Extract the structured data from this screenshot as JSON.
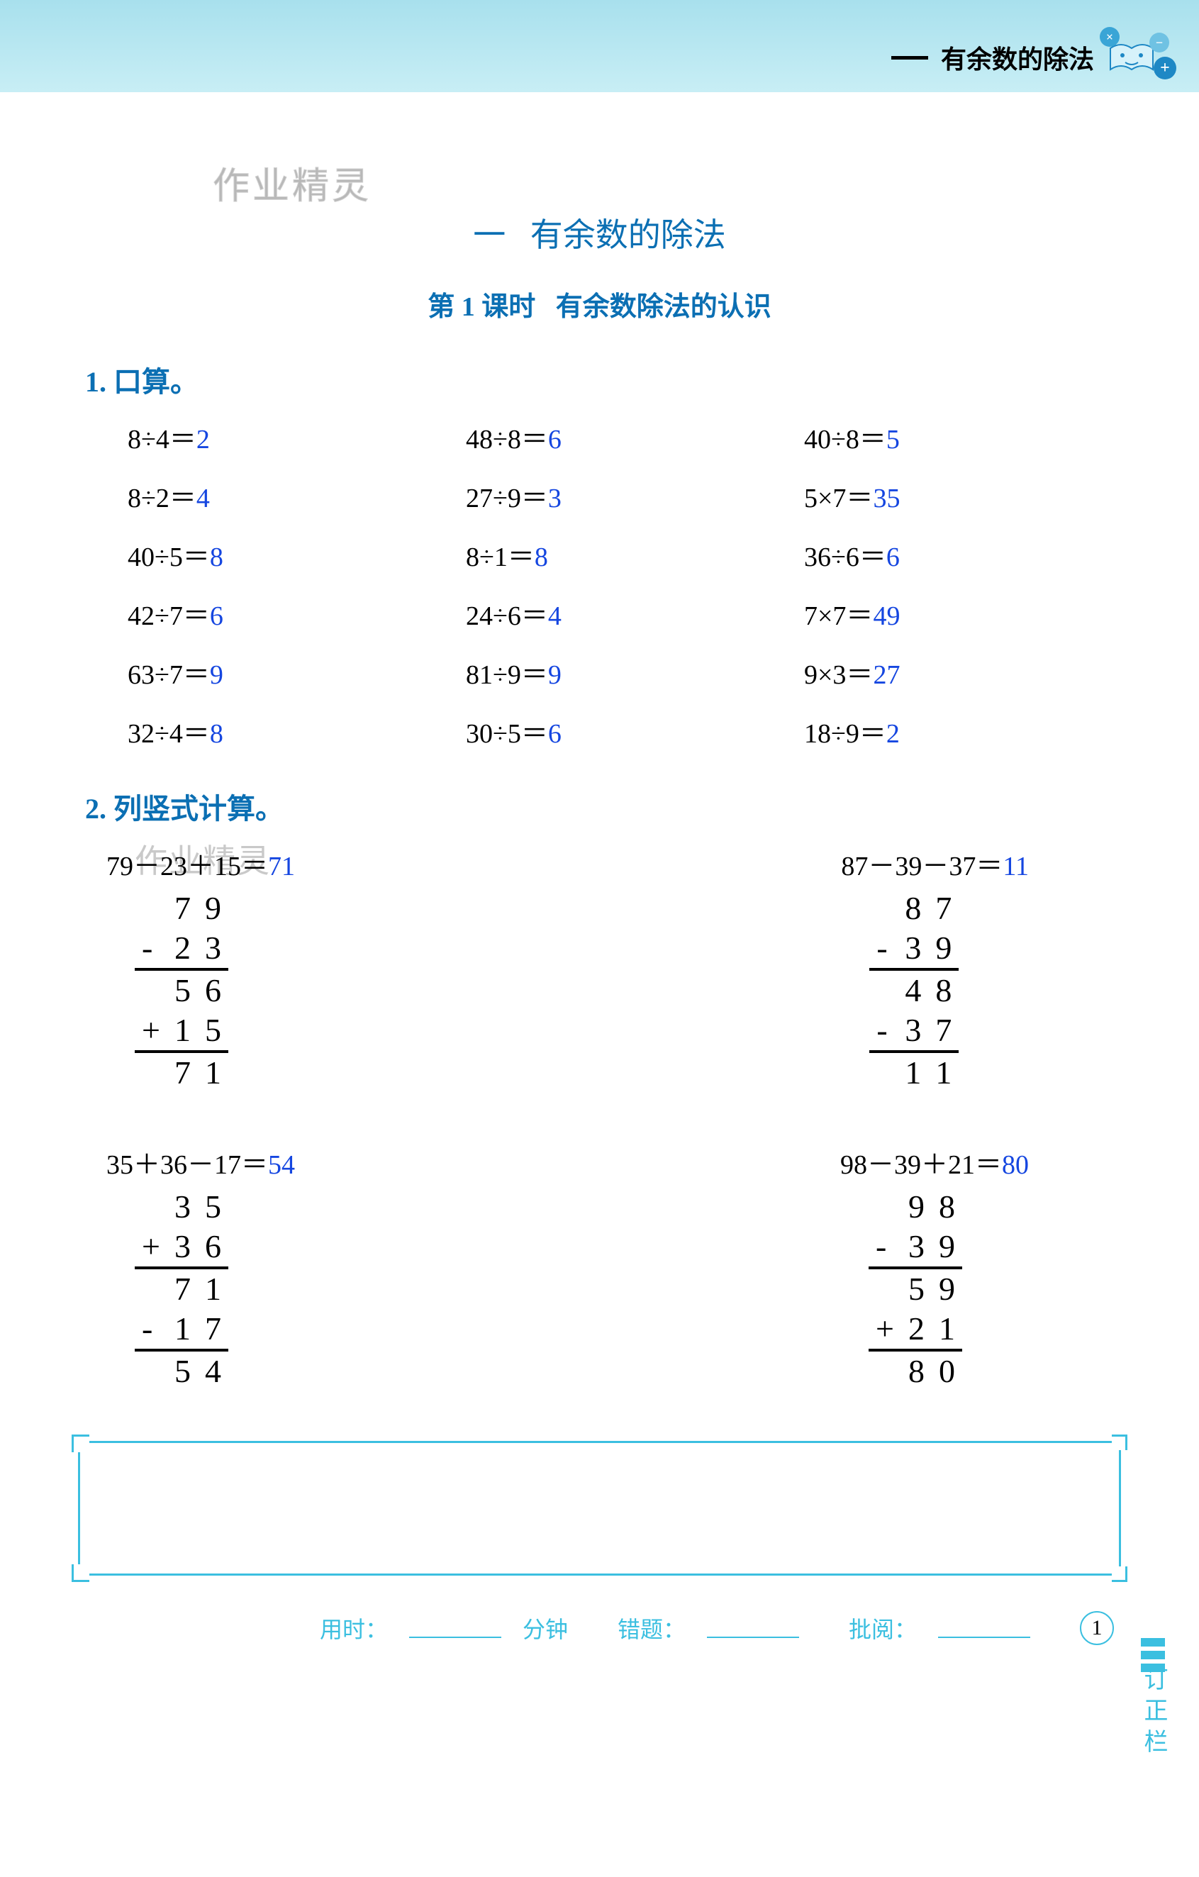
{
  "header": {
    "dash": "—",
    "text": "有余数的除法",
    "icon": {
      "name": "book-face-icon",
      "stroke": "#1e88c5"
    }
  },
  "watermark": "作业精灵",
  "chapter": {
    "number": "一",
    "title": "有余数的除法"
  },
  "lesson": {
    "prefix": "第 1 课时",
    "title": "有余数除法的认识"
  },
  "q1": {
    "label": "1.  口算。",
    "answer_color": "#1546e0",
    "items": [
      {
        "e": "8÷4＝",
        "a": "2"
      },
      {
        "e": "48÷8＝",
        "a": "6"
      },
      {
        "e": "40÷8＝",
        "a": "5"
      },
      {
        "e": "8÷2＝",
        "a": "4"
      },
      {
        "e": "27÷9＝",
        "a": "3"
      },
      {
        "e": "5×7＝",
        "a": "35"
      },
      {
        "e": "40÷5＝",
        "a": "8"
      },
      {
        "e": "8÷1＝",
        "a": "8"
      },
      {
        "e": "36÷6＝",
        "a": "6"
      },
      {
        "e": "42÷7＝",
        "a": "6"
      },
      {
        "e": "24÷6＝",
        "a": "4"
      },
      {
        "e": "7×7＝",
        "a": "49"
      },
      {
        "e": "63÷7＝",
        "a": "9"
      },
      {
        "e": "81÷9＝",
        "a": "9"
      },
      {
        "e": "9×3＝",
        "a": "27"
      },
      {
        "e": "32÷4＝",
        "a": "8"
      },
      {
        "e": "30÷5＝",
        "a": "6"
      },
      {
        "e": "18÷9＝",
        "a": "2"
      }
    ]
  },
  "q2": {
    "label": "2.  列竖式计算。",
    "problems": [
      {
        "expr": "79－23＋15＝",
        "ans": "71",
        "rows": [
          {
            "op": "",
            "d1": "7",
            "d2": "9"
          },
          {
            "op": "-",
            "d1": "2",
            "d2": "3"
          },
          {
            "op": "",
            "d1": "5",
            "d2": "6",
            "line": true
          },
          {
            "op": "+",
            "d1": "1",
            "d2": "5"
          },
          {
            "op": "",
            "d1": "7",
            "d2": "1",
            "line": true
          }
        ]
      },
      {
        "expr": "87－39－37＝",
        "ans": "11",
        "rows": [
          {
            "op": "",
            "d1": "8",
            "d2": "7"
          },
          {
            "op": "-",
            "d1": "3",
            "d2": "9"
          },
          {
            "op": "",
            "d1": "4",
            "d2": "8",
            "line": true
          },
          {
            "op": "-",
            "d1": "3",
            "d2": "7"
          },
          {
            "op": "",
            "d1": "1",
            "d2": "1",
            "line": true
          }
        ]
      },
      {
        "expr": "35＋36－17＝",
        "ans": "54",
        "rows": [
          {
            "op": "",
            "d1": "3",
            "d2": "5"
          },
          {
            "op": "+",
            "d1": "3",
            "d2": "6"
          },
          {
            "op": "",
            "d1": "7",
            "d2": "1",
            "line": true
          },
          {
            "op": "-",
            "d1": "1",
            "d2": "7"
          },
          {
            "op": "",
            "d1": "5",
            "d2": "4",
            "line": true
          }
        ]
      },
      {
        "expr": "98－39＋21＝",
        "ans": "80",
        "rows": [
          {
            "op": "",
            "d1": "9",
            "d2": "8"
          },
          {
            "op": "-",
            "d1": "3",
            "d2": "9"
          },
          {
            "op": "",
            "d1": "5",
            "d2": "9",
            "line": true
          },
          {
            "op": "+",
            "d1": "2",
            "d2": "1"
          },
          {
            "op": "",
            "d1": "8",
            "d2": "0",
            "line": true
          }
        ]
      }
    ]
  },
  "correction": {
    "label": "订正栏"
  },
  "footer": {
    "time_label": "用时：",
    "time_unit": "分钟",
    "errors_label": "错题：",
    "review_label": "批阅：",
    "page": "1"
  },
  "colors": {
    "accent": "#3bbfe0",
    "heading": "#0b6fb3",
    "answer": "#1546e0",
    "banner_top": "#a8e0ed",
    "banner_bottom": "#c8eef5"
  }
}
